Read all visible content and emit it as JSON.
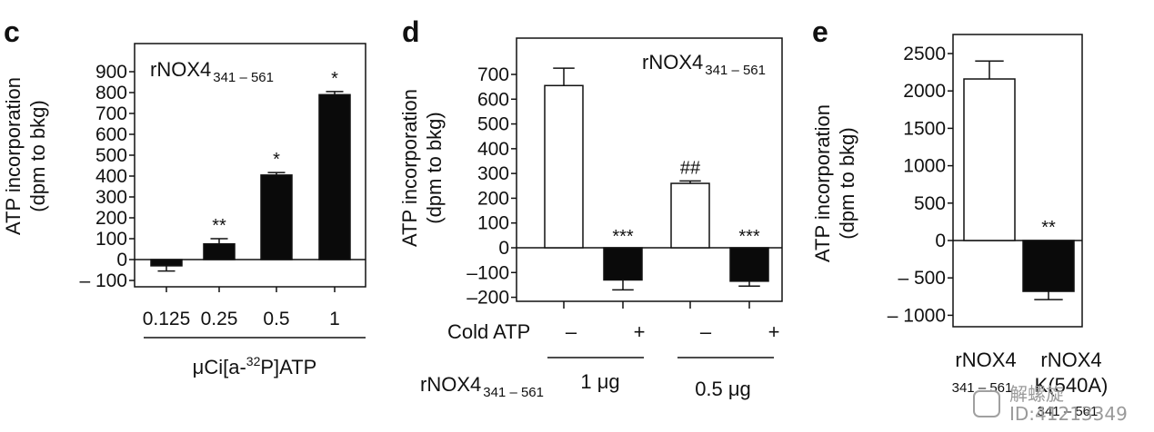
{
  "panels": {
    "c": {
      "letter": "c",
      "inset_main": "rNOX4",
      "inset_sub": "341 – 561",
      "ylabel1": "ATP incorporation",
      "ylabel2": "(dpm to bkg)",
      "group_label_pre": "μCi[a-",
      "group_label_sup": "32",
      "group_label_post": "P]ATP"
    },
    "d": {
      "letter": "d",
      "inset_main": "rNOX4",
      "inset_sub": "341 – 561",
      "ylabel1": "ATP incorporation",
      "ylabel2": "(dpm to bkg)",
      "cold_label": "Cold ATP",
      "cold_marks": [
        "–",
        "+",
        "–",
        "+"
      ],
      "row_main": "rNOX4",
      "row_sub": "341 – 561",
      "dose1": "1 μg",
      "dose2": "0.5 μg"
    },
    "e": {
      "letter": "e",
      "ylabel1": "ATP incorporation",
      "ylabel2": "(dpm to bkg)",
      "xcat1": "rNOX4",
      "xcat1_sub": "341 – 561",
      "xcat2": "rNOX4",
      "xcat2_line2": "K(540A)",
      "xcat2_sub": "341 – 561"
    }
  },
  "watermark": {
    "line1": "解螺旋",
    "line2": "ID:41213349"
  },
  "chart_data": [
    {
      "type": "bar",
      "panel": "c",
      "categories": [
        "0.125",
        "0.25",
        "0.5",
        "1"
      ],
      "values": [
        -30,
        75,
        405,
        790
      ],
      "errors": [
        25,
        25,
        12,
        15
      ],
      "significance": [
        "",
        "**",
        "*",
        "*"
      ],
      "fill": "black",
      "ylim": [
        -130,
        1000
      ],
      "yticks": [
        -100,
        0,
        100,
        200,
        300,
        400,
        500,
        600,
        700,
        800,
        900
      ],
      "yticklabels": [
        "– 100",
        "0",
        "100",
        "200",
        "300",
        "400",
        "500",
        "600",
        "700",
        "800",
        "900"
      ],
      "ylabel": "ATP incorporation (dpm to bkg)",
      "xlabel": "μCi[a-32P]ATP"
    },
    {
      "type": "bar",
      "panel": "d",
      "categories": [
        "1 μg –",
        "1 μg +",
        "0.5 μg –",
        "0.5 μg +"
      ],
      "values": [
        655,
        -130,
        260,
        -135
      ],
      "errors": [
        70,
        40,
        10,
        20
      ],
      "fills": [
        "white",
        "black",
        "white",
        "black"
      ],
      "significance": [
        "",
        "***",
        "##",
        "***"
      ],
      "ylim": [
        -230,
        850
      ],
      "yticks": [
        -200,
        -100,
        0,
        100,
        200,
        300,
        400,
        500,
        600,
        700
      ],
      "yticklabels": [
        "–200",
        "–100",
        "0",
        "100",
        "200",
        "300",
        "400",
        "500",
        "600",
        "700"
      ],
      "ylabel": "ATP incorporation (dpm to bkg)"
    },
    {
      "type": "bar",
      "panel": "e",
      "categories": [
        "rNOX4 341–561",
        "rNOX4 K(540A) 341–561"
      ],
      "values": [
        2160,
        -680
      ],
      "errors": [
        240,
        110
      ],
      "fills": [
        "white",
        "black"
      ],
      "significance": [
        "",
        "**"
      ],
      "ylim": [
        -1150,
        2750
      ],
      "yticks": [
        -1000,
        -500,
        0,
        500,
        1000,
        1500,
        2000,
        2500
      ],
      "yticklabels": [
        "– 1000",
        "– 500",
        "0",
        "500",
        "1000",
        "1500",
        "2000",
        "2500"
      ],
      "ylabel": "ATP incorporation (dpm to bkg)"
    }
  ]
}
